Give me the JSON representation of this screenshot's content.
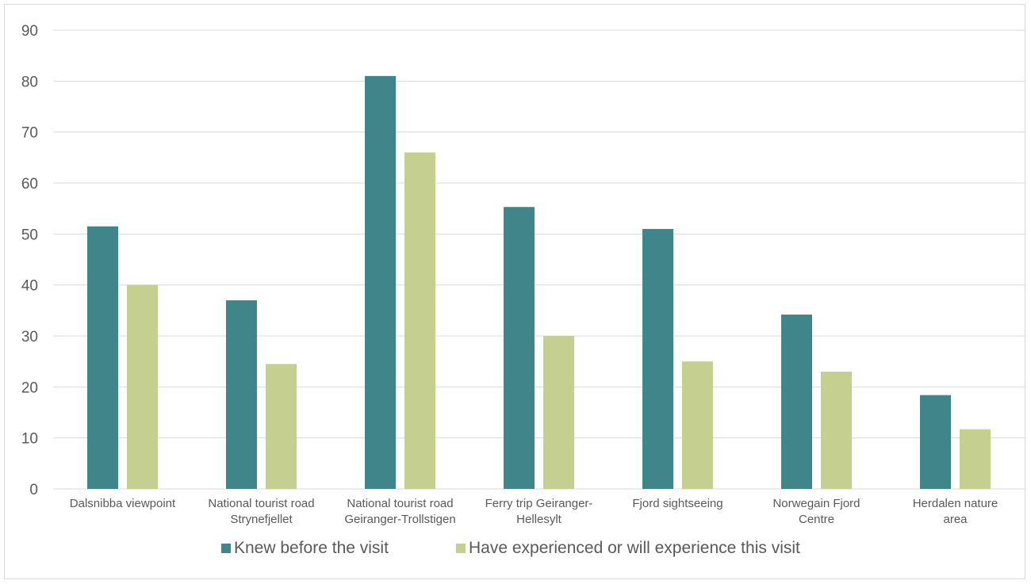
{
  "chart_data": {
    "type": "bar",
    "categories": [
      [
        "Dalsnibba viewpoint"
      ],
      [
        "National tourist road",
        "Strynefjellet"
      ],
      [
        "National tourist road",
        "Geiranger-Trollstigen"
      ],
      [
        "Ferry trip Geiranger-",
        "Hellesylt"
      ],
      [
        "Fjord sightseeing"
      ],
      [
        "Norwegain Fjord",
        "Centre"
      ],
      [
        "Herdalen nature",
        "area"
      ]
    ],
    "series": [
      {
        "name": "Knew before the visit",
        "color": "#3f8589",
        "values": [
          51.5,
          37,
          81,
          55.3,
          51,
          34.2,
          18.4
        ]
      },
      {
        "name": "Have experienced or will experience this visit",
        "color": "#c5cf8f",
        "values": [
          40,
          24.5,
          66,
          30,
          25,
          23,
          11.7
        ]
      }
    ],
    "ylim": [
      0,
      90
    ],
    "yticks": [
      0,
      10,
      20,
      30,
      40,
      50,
      60,
      70,
      80,
      90
    ],
    "grid": true,
    "legend": "bottom",
    "title": "",
    "xlabel": "",
    "ylabel": ""
  }
}
